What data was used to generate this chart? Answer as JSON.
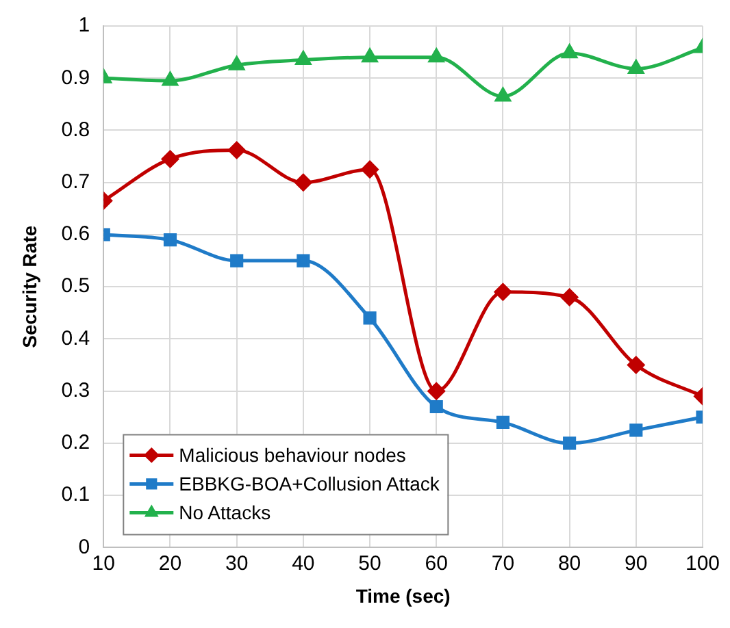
{
  "chart_data": {
    "type": "line",
    "xlabel": "Time (sec)",
    "ylabel": "Security Rate",
    "x": [
      10,
      20,
      30,
      40,
      50,
      60,
      70,
      80,
      90,
      100
    ],
    "series": [
      {
        "name": "Malicious behaviour nodes",
        "color": "#c00000",
        "marker": "diamond",
        "values": [
          0.665,
          0.745,
          0.762,
          0.7,
          0.725,
          0.3,
          0.49,
          0.48,
          0.35,
          0.29
        ]
      },
      {
        "name": "EBBKG-BOA+Collusion Attack",
        "color": "#1f7bc8",
        "marker": "square",
        "values": [
          0.6,
          0.59,
          0.55,
          0.55,
          0.44,
          0.27,
          0.24,
          0.2,
          0.225,
          0.25
        ]
      },
      {
        "name": "No Attacks",
        "color": "#22b14c",
        "marker": "triangle",
        "values": [
          0.9,
          0.895,
          0.925,
          0.935,
          0.94,
          0.94,
          0.865,
          0.948,
          0.918,
          0.958
        ]
      }
    ],
    "xlim": [
      10,
      100
    ],
    "xticks": [
      10,
      20,
      30,
      40,
      50,
      60,
      70,
      80,
      90,
      100
    ],
    "ylim": [
      0,
      1
    ],
    "yticks": [
      0,
      0.1,
      0.2,
      0.3,
      0.4,
      0.5,
      0.6,
      0.7,
      0.8,
      0.9,
      1
    ],
    "grid": true,
    "legend": "bottom left"
  }
}
